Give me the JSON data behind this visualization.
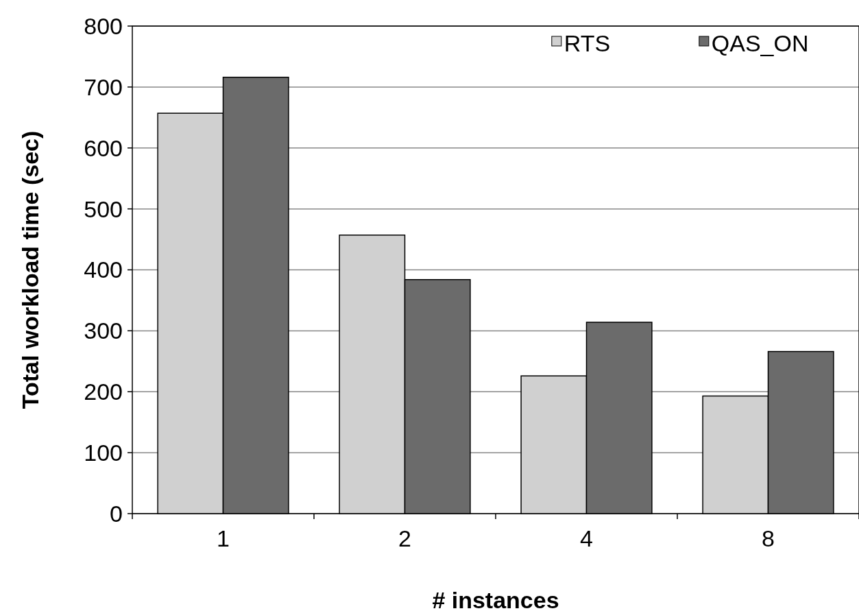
{
  "chart_data": {
    "type": "bar",
    "xlabel": "# instances",
    "ylabel": "Total workload time (sec)",
    "categories": [
      "1",
      "2",
      "4",
      "8"
    ],
    "series": [
      {
        "name": "RTS",
        "color": "#d0d0d0",
        "values": [
          657,
          457,
          226,
          193
        ]
      },
      {
        "name": "QAS_ON",
        "color": "#6b6b6b",
        "values": [
          716,
          384,
          314,
          266
        ]
      }
    ],
    "ylim": [
      0,
      800
    ],
    "yticks": [
      0,
      100,
      200,
      300,
      400,
      500,
      600,
      700,
      800
    ],
    "grid": "y",
    "legend": "top right"
  }
}
